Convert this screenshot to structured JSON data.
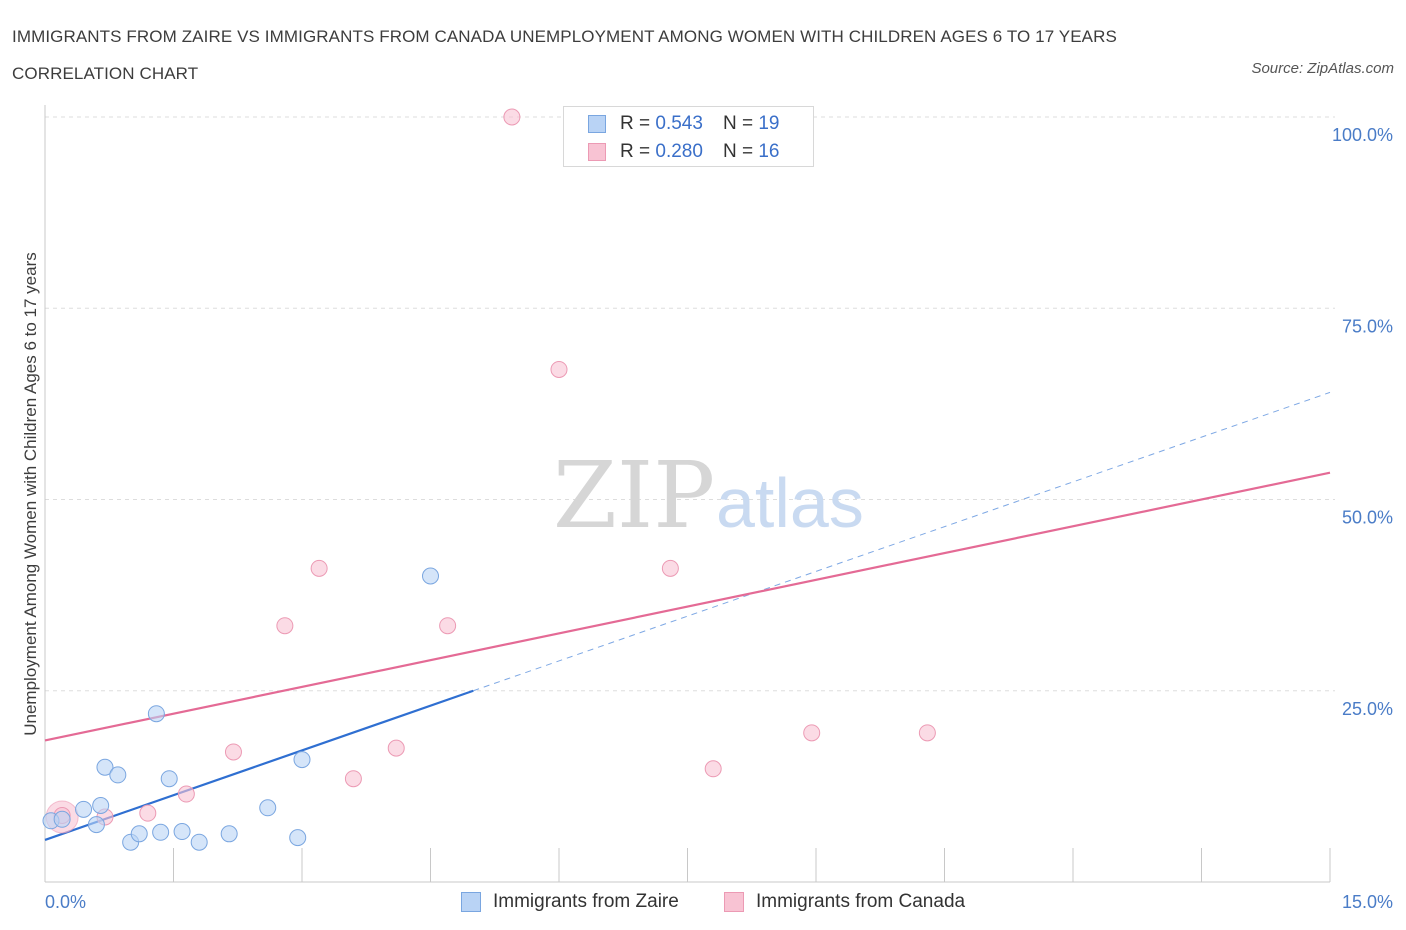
{
  "title": "IMMIGRANTS FROM ZAIRE VS IMMIGRANTS FROM CANADA UNEMPLOYMENT AMONG WOMEN WITH CHILDREN AGES 6 TO 17 YEARS CORRELATION CHART",
  "source": "Source: ZipAtlas.com",
  "watermark": {
    "zip": "ZIP",
    "atlas": "atlas"
  },
  "legend": {
    "zaire": {
      "r_label": "R =",
      "r_value": "0.543",
      "n_label": "N =",
      "n_value": "19"
    },
    "canada": {
      "r_label": "R =",
      "r_value": "0.280",
      "n_label": "N =",
      "n_value": "16"
    }
  },
  "colors": {
    "zaire_fill": "#b9d3f5",
    "zaire_stroke": "#7aa6e0",
    "zaire_line": "#2f6fd1",
    "canada_fill": "#f8c3d3",
    "canada_stroke": "#ec9ab4",
    "canada_line": "#e46a95"
  },
  "chart_data": {
    "type": "scatter",
    "title": "IMMIGRANTS FROM ZAIRE VS IMMIGRANTS FROM CANADA UNEMPLOYMENT AMONG WOMEN WITH CHILDREN AGES 6 TO 17 YEARS CORRELATION CHART",
    "xlabel": "",
    "ylabel": "Unemployment Among Women with Children Ages 6 to 17 years",
    "xlim": [
      0,
      15
    ],
    "ylim": [
      0,
      100
    ],
    "x_tick_labels": [
      "0.0%",
      "15.0%"
    ],
    "y_ticks": [
      25,
      50,
      75,
      100
    ],
    "y_tick_labels": [
      "25.0%",
      "50.0%",
      "75.0%",
      "100.0%"
    ],
    "grid": true,
    "series": [
      {
        "name": "Immigrants from Zaire",
        "points": [
          [
            0.07,
            8.0
          ],
          [
            0.2,
            8.2
          ],
          [
            0.45,
            9.5
          ],
          [
            0.6,
            7.5
          ],
          [
            0.65,
            10.0
          ],
          [
            0.7,
            15.0
          ],
          [
            0.85,
            14.0
          ],
          [
            1.0,
            5.2
          ],
          [
            1.1,
            6.3
          ],
          [
            1.3,
            22.0
          ],
          [
            1.35,
            6.5
          ],
          [
            1.45,
            13.5
          ],
          [
            1.6,
            6.6
          ],
          [
            1.8,
            5.2
          ],
          [
            2.15,
            6.3
          ],
          [
            2.6,
            9.7
          ],
          [
            2.95,
            5.8
          ],
          [
            3.0,
            16.0
          ],
          [
            4.5,
            40.0
          ]
        ],
        "trend": {
          "x0": 0.0,
          "y0": 5.5,
          "x1": 5.0,
          "y1": 25.0,
          "dashed_to": [
            15.0,
            64.0
          ]
        }
      },
      {
        "name": "Immigrants from Canada",
        "points": [
          [
            0.2,
            8.7
          ],
          [
            0.7,
            8.5
          ],
          [
            1.2,
            9.0
          ],
          [
            1.65,
            11.5
          ],
          [
            2.2,
            17.0
          ],
          [
            2.8,
            33.5
          ],
          [
            3.2,
            41.0
          ],
          [
            3.6,
            13.5
          ],
          [
            4.1,
            17.5
          ],
          [
            4.7,
            33.5
          ],
          [
            5.45,
            100.0
          ],
          [
            6.0,
            67.0
          ],
          [
            7.3,
            41.0
          ],
          [
            7.8,
            14.8
          ],
          [
            8.95,
            19.5
          ],
          [
            10.3,
            19.5
          ]
        ],
        "trend": {
          "x0": 0.0,
          "y0": 18.5,
          "x1": 15.0,
          "y1": 53.5
        }
      }
    ]
  },
  "bottom_legend": {
    "zaire": "Immigrants from Zaire",
    "canada": "Immigrants from Canada"
  }
}
